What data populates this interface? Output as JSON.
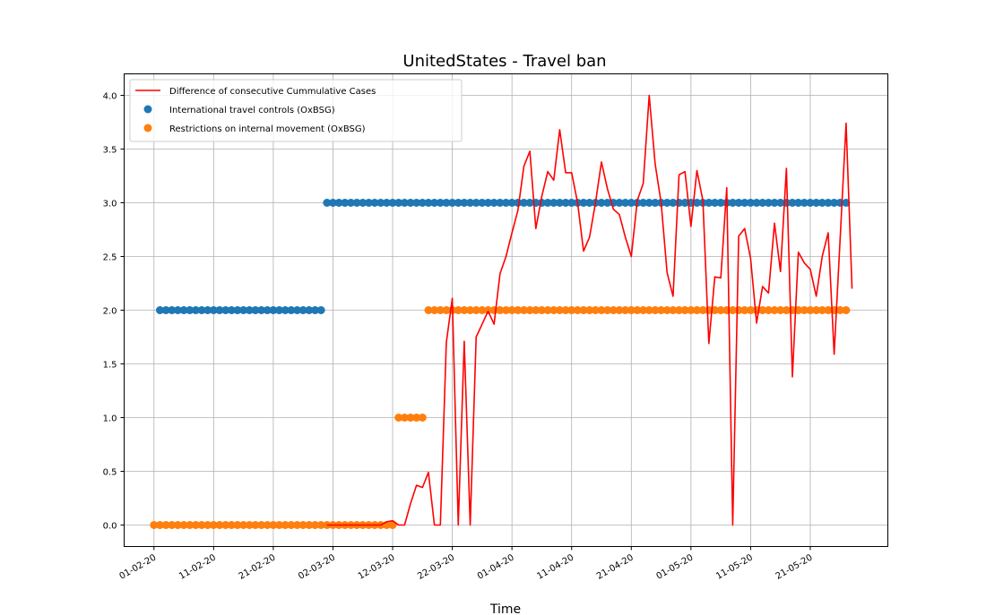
{
  "chart_data": {
    "type": "line",
    "title": "UnitedStates - Travel ban",
    "xlabel": "Time",
    "ylabel": "",
    "ylim": [
      -0.2,
      4.2
    ],
    "y_ticks": [
      0.0,
      0.5,
      1.0,
      1.5,
      2.0,
      2.5,
      3.0,
      3.5,
      4.0
    ],
    "y_tick_labels": [
      "0.0",
      "0.5",
      "1.0",
      "1.5",
      "2.0",
      "2.5",
      "3.0",
      "3.5",
      "4.0"
    ],
    "xlim": [
      "2020-01-27",
      "2020-06-03"
    ],
    "x_ticks": [
      "2020-02-01",
      "2020-02-11",
      "2020-02-21",
      "2020-03-02",
      "2020-03-12",
      "2020-03-22",
      "2020-04-01",
      "2020-04-11",
      "2020-04-21",
      "2020-05-01",
      "2020-05-11",
      "2020-05-21"
    ],
    "x_tick_labels": [
      "01-02-20",
      "11-02-20",
      "21-02-20",
      "02-03-20",
      "12-03-20",
      "22-03-20",
      "01-04-20",
      "11-04-20",
      "21-04-20",
      "01-05-20",
      "11-05-20",
      "21-05-20"
    ],
    "grid": true,
    "legend_position": "top-left",
    "series": [
      {
        "name": "Difference of consecutive Cummulative Cases",
        "kind": "line",
        "color": "#ff0000",
        "start": "2020-03-01",
        "values": [
          0.0,
          0.0,
          0.0,
          0.0,
          0.0,
          0.0,
          0.0,
          0.0,
          0.0,
          0.0,
          0.03,
          0.04,
          0.0,
          0.0,
          0.2,
          0.37,
          0.35,
          0.49,
          0.0,
          0.0,
          1.7,
          2.11,
          0.0,
          1.71,
          0.0,
          1.75,
          1.87,
          1.99,
          1.87,
          2.34,
          2.5,
          2.72,
          2.93,
          3.34,
          3.48,
          2.76,
          3.06,
          3.29,
          3.21,
          3.68,
          3.28,
          3.28,
          3.0,
          2.55,
          2.68,
          3.0,
          3.38,
          3.13,
          2.94,
          2.89,
          2.68,
          2.5,
          3.02,
          3.18,
          4.0,
          3.36,
          3.0,
          2.35,
          2.13,
          3.26,
          3.29,
          2.78,
          3.3,
          3.02,
          1.69,
          2.31,
          2.3,
          3.14,
          0.0,
          2.69,
          2.76,
          2.48,
          1.88,
          2.22,
          2.16,
          2.81,
          2.36,
          3.32,
          1.38,
          2.54,
          2.44,
          2.38,
          2.13,
          2.5,
          2.72,
          1.59,
          2.66,
          3.74,
          2.2
        ]
      },
      {
        "name": "International travel controls (OxBSG)",
        "kind": "scatter",
        "color": "#1f77b4",
        "segments": [
          {
            "from": "2020-02-02",
            "to": "2020-02-29",
            "value": 2.0
          },
          {
            "from": "2020-03-01",
            "to": "2020-05-27",
            "value": 3.0
          }
        ]
      },
      {
        "name": "Restrictions on internal movement (OxBSG)",
        "kind": "scatter",
        "color": "#ff7f0e",
        "segments": [
          {
            "from": "2020-02-01",
            "to": "2020-03-12",
            "value": 0.0
          },
          {
            "from": "2020-03-13",
            "to": "2020-03-17",
            "value": 1.0
          },
          {
            "from": "2020-03-18",
            "to": "2020-05-27",
            "value": 2.0
          }
        ]
      }
    ]
  }
}
